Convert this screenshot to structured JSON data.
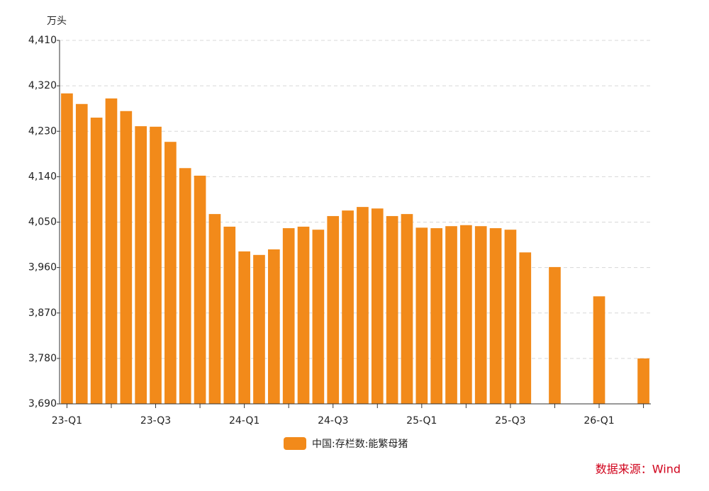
{
  "chart_data": {
    "type": "bar",
    "y_unit": "万头",
    "source": "数据来源：Wind",
    "categories": [
      "23-Q1",
      null,
      null,
      null,
      null,
      null,
      "23-Q3",
      null,
      null,
      null,
      null,
      null,
      "24-Q1",
      null,
      null,
      null,
      null,
      null,
      "24-Q3",
      null,
      null,
      null,
      null,
      null,
      "25-Q1",
      null,
      null,
      null,
      null,
      null,
      "25-Q3",
      null,
      null,
      null,
      null,
      null,
      "26-Q1",
      null,
      null,
      null
    ],
    "series": [
      {
        "name": "中国:存栏数:能繁母猪",
        "color": "#f28a1a",
        "values": [
          4305,
          4284,
          4257,
          4295,
          4270,
          4240,
          4239,
          4209,
          4157,
          4142,
          4066,
          4041,
          3992,
          3985,
          3996,
          4038,
          4041,
          4035,
          4062,
          4073,
          4080,
          4077,
          4062,
          4066,
          4039,
          4038,
          4042,
          4044,
          4042,
          4038,
          4035,
          3990,
          null,
          3961,
          null,
          null,
          3903,
          null,
          null,
          3780
        ]
      }
    ],
    "ylim": [
      3690,
      4410
    ],
    "yticks": [
      {
        "value": 3690,
        "label": "3,690"
      },
      {
        "value": 3780,
        "label": "3,780"
      },
      {
        "value": 3870,
        "label": "3,870"
      },
      {
        "value": 3960,
        "label": "3,960"
      },
      {
        "value": 4050,
        "label": "4,050"
      },
      {
        "value": 4140,
        "label": "4,140"
      },
      {
        "value": 4230,
        "label": "4,230"
      },
      {
        "value": 4320,
        "label": "4,320"
      },
      {
        "value": 4410,
        "label": "4,410"
      }
    ],
    "grid": true,
    "legend": "bottom"
  }
}
